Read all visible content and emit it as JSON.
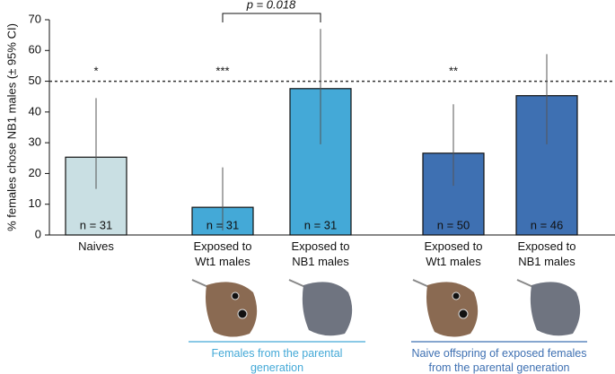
{
  "chart_data": {
    "type": "bar",
    "y_label": "% females chose NB1 males (± 95% CI)",
    "categories": [
      "Naives",
      "Exposed to Wt1 males",
      "Exposed to NB1 males",
      "Exposed to Wt1 males",
      "Exposed to NB1 males"
    ],
    "values": [
      25.3,
      9,
      47.6,
      26.6,
      45.3
    ],
    "ci_low": [
      15,
      1.5,
      29.5,
      16,
      29.5
    ],
    "ci_high": [
      44.5,
      22,
      67,
      42.5,
      58.8
    ],
    "colors": [
      "#c9dfe3",
      "#44a9d7",
      "#44a9d7",
      "#3e70b2",
      "#3e70b2"
    ],
    "n_labels": [
      "n = 31",
      "n = 31",
      "n = 31",
      "n = 50",
      "n = 46"
    ],
    "significance": [
      "*",
      "***",
      null,
      "**",
      null
    ],
    "p_annotation": "p = 0.018",
    "reference_line": 50,
    "ylim": [
      0,
      70
    ],
    "yticks": [
      0,
      10,
      20,
      30,
      40,
      50,
      60,
      70
    ],
    "groups": [
      {
        "label": "Females from the parental generation",
        "color": "#44a9d7"
      },
      {
        "label": "Naive offspring of exposed females from the parental generation",
        "color": "#3e70b2"
      }
    ]
  }
}
